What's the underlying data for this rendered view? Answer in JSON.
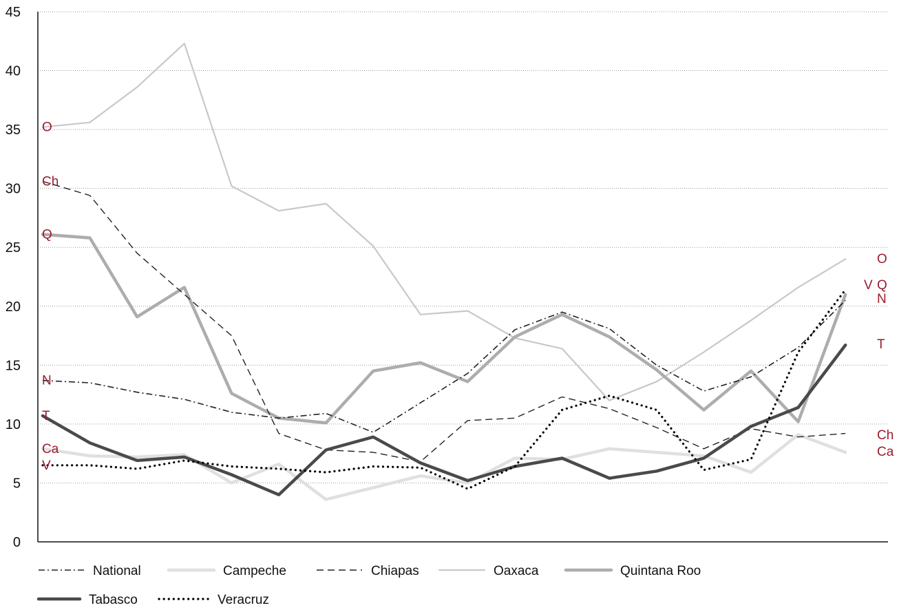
{
  "chart_data": {
    "type": "line",
    "title": "",
    "xlabel": "",
    "ylabel": "",
    "ylim": [
      0,
      45
    ],
    "yticks": [
      0,
      5,
      10,
      15,
      20,
      25,
      30,
      35,
      40,
      45
    ],
    "grid": "horizontal dotted",
    "legend_position": "bottom",
    "x": [
      1,
      2,
      3,
      4,
      5,
      6,
      7,
      8,
      9,
      10,
      11,
      12,
      13,
      14,
      15,
      16,
      17,
      18,
      19
    ],
    "series": [
      {
        "name": "National",
        "start_label": "N",
        "end_label": "N",
        "color": "#222222",
        "style": "dashdot",
        "values": [
          13.7,
          13.5,
          12.7,
          12.1,
          11.0,
          10.5,
          10.9,
          9.3,
          11.8,
          14.3,
          18.0,
          19.5,
          18.1,
          15.0,
          12.8,
          14.0,
          16.5,
          20.5,
          null
        ]
      },
      {
        "name": "Campeche",
        "start_label": "Ca",
        "end_label": "Ca",
        "color": "#e0e0e0",
        "style": "thick",
        "values": [
          7.9,
          7.3,
          7.2,
          7.4,
          5.0,
          6.6,
          3.6,
          4.6,
          5.6,
          5.0,
          7.1,
          7.0,
          7.9,
          7.6,
          7.3,
          5.9,
          9.1,
          7.6,
          null
        ]
      },
      {
        "name": "Chiapas",
        "start_label": "Ch",
        "end_label": "Ch",
        "color": "#222222",
        "style": "dashed",
        "values": [
          30.6,
          29.4,
          24.5,
          21.0,
          17.5,
          9.2,
          7.8,
          7.6,
          6.8,
          10.3,
          10.5,
          12.3,
          11.3,
          9.7,
          7.9,
          9.6,
          8.9,
          9.2,
          null
        ]
      },
      {
        "name": "Oaxaca",
        "start_label": "O",
        "end_label": "O",
        "color": "#c8c8c8",
        "style": "thin",
        "values": [
          35.2,
          35.6,
          38.6,
          42.3,
          30.2,
          28.1,
          28.7,
          25.1,
          19.3,
          19.6,
          17.3,
          16.4,
          12.0,
          13.6,
          16.1,
          18.8,
          21.6,
          24.0,
          null
        ]
      },
      {
        "name": "Quintana Roo",
        "start_label": "Q",
        "end_label": "Q",
        "color": "#adadad",
        "style": "thick",
        "values": [
          26.1,
          25.8,
          19.1,
          21.6,
          12.6,
          10.5,
          10.1,
          14.5,
          15.2,
          13.6,
          17.4,
          19.3,
          17.4,
          14.6,
          11.2,
          14.5,
          10.2,
          21.0,
          null
        ]
      },
      {
        "name": "Tabasco",
        "start_label": "T",
        "end_label": "T",
        "color": "#4a4a4a",
        "style": "thick",
        "values": [
          10.7,
          8.4,
          6.9,
          7.2,
          5.7,
          4.0,
          7.8,
          8.9,
          6.7,
          5.2,
          6.4,
          7.1,
          5.4,
          6.0,
          7.1,
          9.8,
          11.4,
          16.7,
          null
        ]
      },
      {
        "name": "Veracruz",
        "start_label": "V",
        "end_label": "V",
        "color": "#000000",
        "style": "dotted",
        "values": [
          6.5,
          6.5,
          6.2,
          6.9,
          6.4,
          6.2,
          5.9,
          6.4,
          6.3,
          4.5,
          6.4,
          11.2,
          12.4,
          11.2,
          6.1,
          7.0,
          16.1,
          21.4,
          null
        ]
      }
    ]
  }
}
